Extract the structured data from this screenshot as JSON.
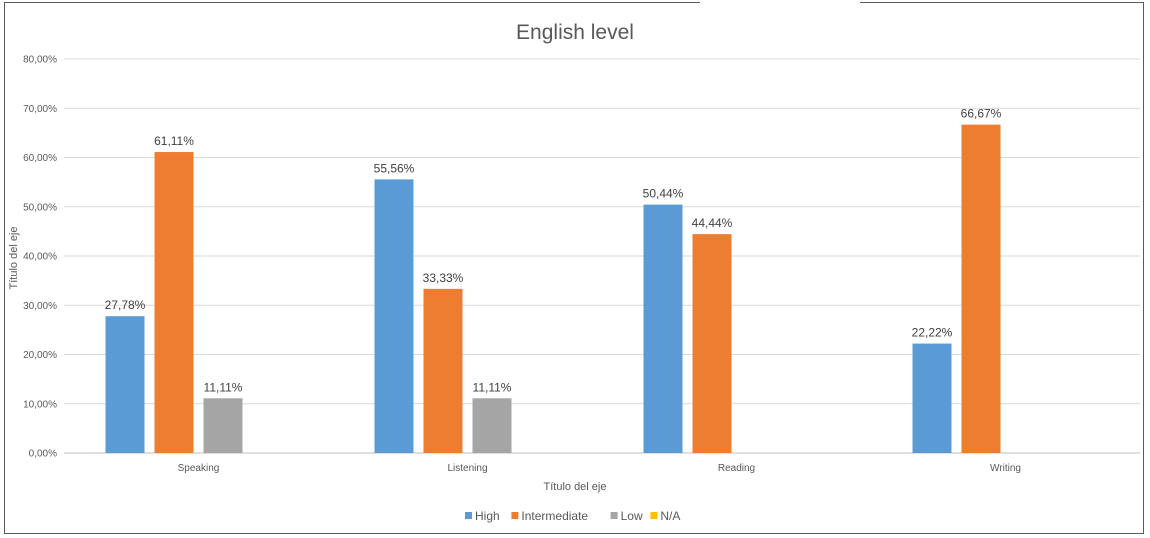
{
  "chart_data": {
    "type": "bar",
    "title": "English level",
    "xlabel": "Título del eje",
    "ylabel": "Título del eje",
    "categories": [
      "Speaking",
      "Listening",
      "Reading",
      "Writing"
    ],
    "series": [
      {
        "name": "High",
        "color": "#5b9bd5",
        "values": [
          27.78,
          55.56,
          50.44,
          22.22
        ],
        "labels": [
          "27,78%",
          "55,56%",
          "50,44%",
          "22,22%"
        ]
      },
      {
        "name": "Intermediate",
        "color": "#ed7d31",
        "values": [
          61.11,
          33.33,
          44.44,
          66.67
        ],
        "labels": [
          "61,11%",
          "33,33%",
          "44,44%",
          "66,67%"
        ]
      },
      {
        "name": "Low",
        "color": "#a5a5a5",
        "values": [
          11.11,
          11.11,
          null,
          null
        ],
        "labels": [
          "11,11%",
          "11,11%",
          "",
          ""
        ]
      },
      {
        "name": "N/A",
        "color": "#ffc000",
        "values": [
          null,
          null,
          null,
          null
        ],
        "labels": [
          "",
          "",
          "",
          ""
        ]
      }
    ],
    "ylim": [
      0,
      80
    ],
    "yticks": [
      0,
      10,
      20,
      30,
      40,
      50,
      60,
      70,
      80
    ],
    "ytick_labels": [
      "0,00%",
      "10,00%",
      "20,00%",
      "30,00%",
      "40,00%",
      "50,00%",
      "60,00%",
      "70,00%",
      "80,00%"
    ],
    "grid": true,
    "legend_position": "bottom",
    "gridline_color": "#d9d9d9"
  }
}
